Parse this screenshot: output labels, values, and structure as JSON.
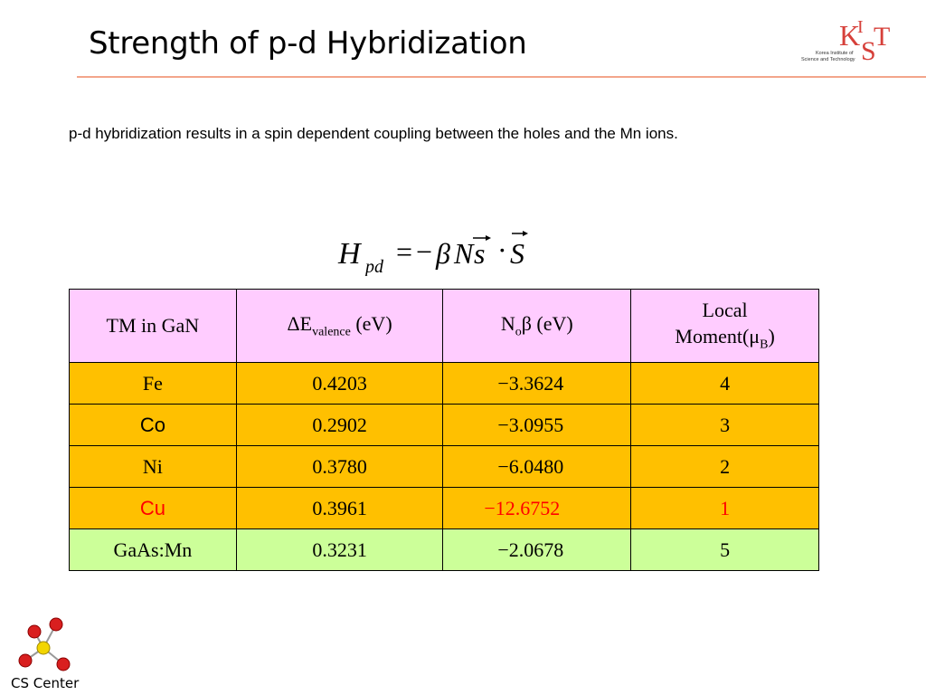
{
  "slide": {
    "title": "Strength of p-d Hybridization",
    "intro": "p-d hybridization results in a spin dependent coupling between the holes and the Mn ions."
  },
  "logo": {
    "mark": "KIST",
    "line1": "Korea Institute of",
    "line2": "Science and Technology"
  },
  "formula": {
    "lhs": "H",
    "lhs_sub": "pd",
    "equals": "=",
    "minus": "−",
    "beta": "β",
    "n": "N",
    "s_small": "s",
    "dot": "·",
    "s_big": "S"
  },
  "table": {
    "headers": {
      "col1": "TM in GaN",
      "col2_main": "ΔE",
      "col2_sub": "valence",
      "col2_unit": " (eV)",
      "col3_main": "N",
      "col3_sub": "o",
      "col3_unit": "β (eV)",
      "col4_line1": "Local",
      "col4_main": "Moment(μ",
      "col4_sub": "B",
      "col4_close": ")"
    },
    "rows": [
      {
        "name": "Fe",
        "de": "0.4203",
        "nb": "−3.3624",
        "moment": "4"
      },
      {
        "name": "Co",
        "de": "0.2902",
        "nb": "−3.0955",
        "moment": "3"
      },
      {
        "name": "Ni",
        "de": "0.3780",
        "nb": "−6.0480",
        "moment": "2"
      },
      {
        "name": "Cu",
        "de": "0.3961",
        "nb": "−12.6752",
        "moment": "1"
      },
      {
        "name": "GaAs:Mn",
        "de": "0.3231",
        "nb": "−2.0678",
        "moment": "5"
      }
    ]
  },
  "footer": {
    "label": "CS Center"
  },
  "colors": {
    "header_bg": "#ffccff",
    "metal_row_bg": "#ffc000",
    "reference_row_bg": "#ccff99",
    "highlight_text": "#ff0000",
    "logo_red": "#d6403a",
    "title_rule": "#f3a58b",
    "atom_red": "#d91f1f",
    "atom_center": "#f2d500"
  }
}
